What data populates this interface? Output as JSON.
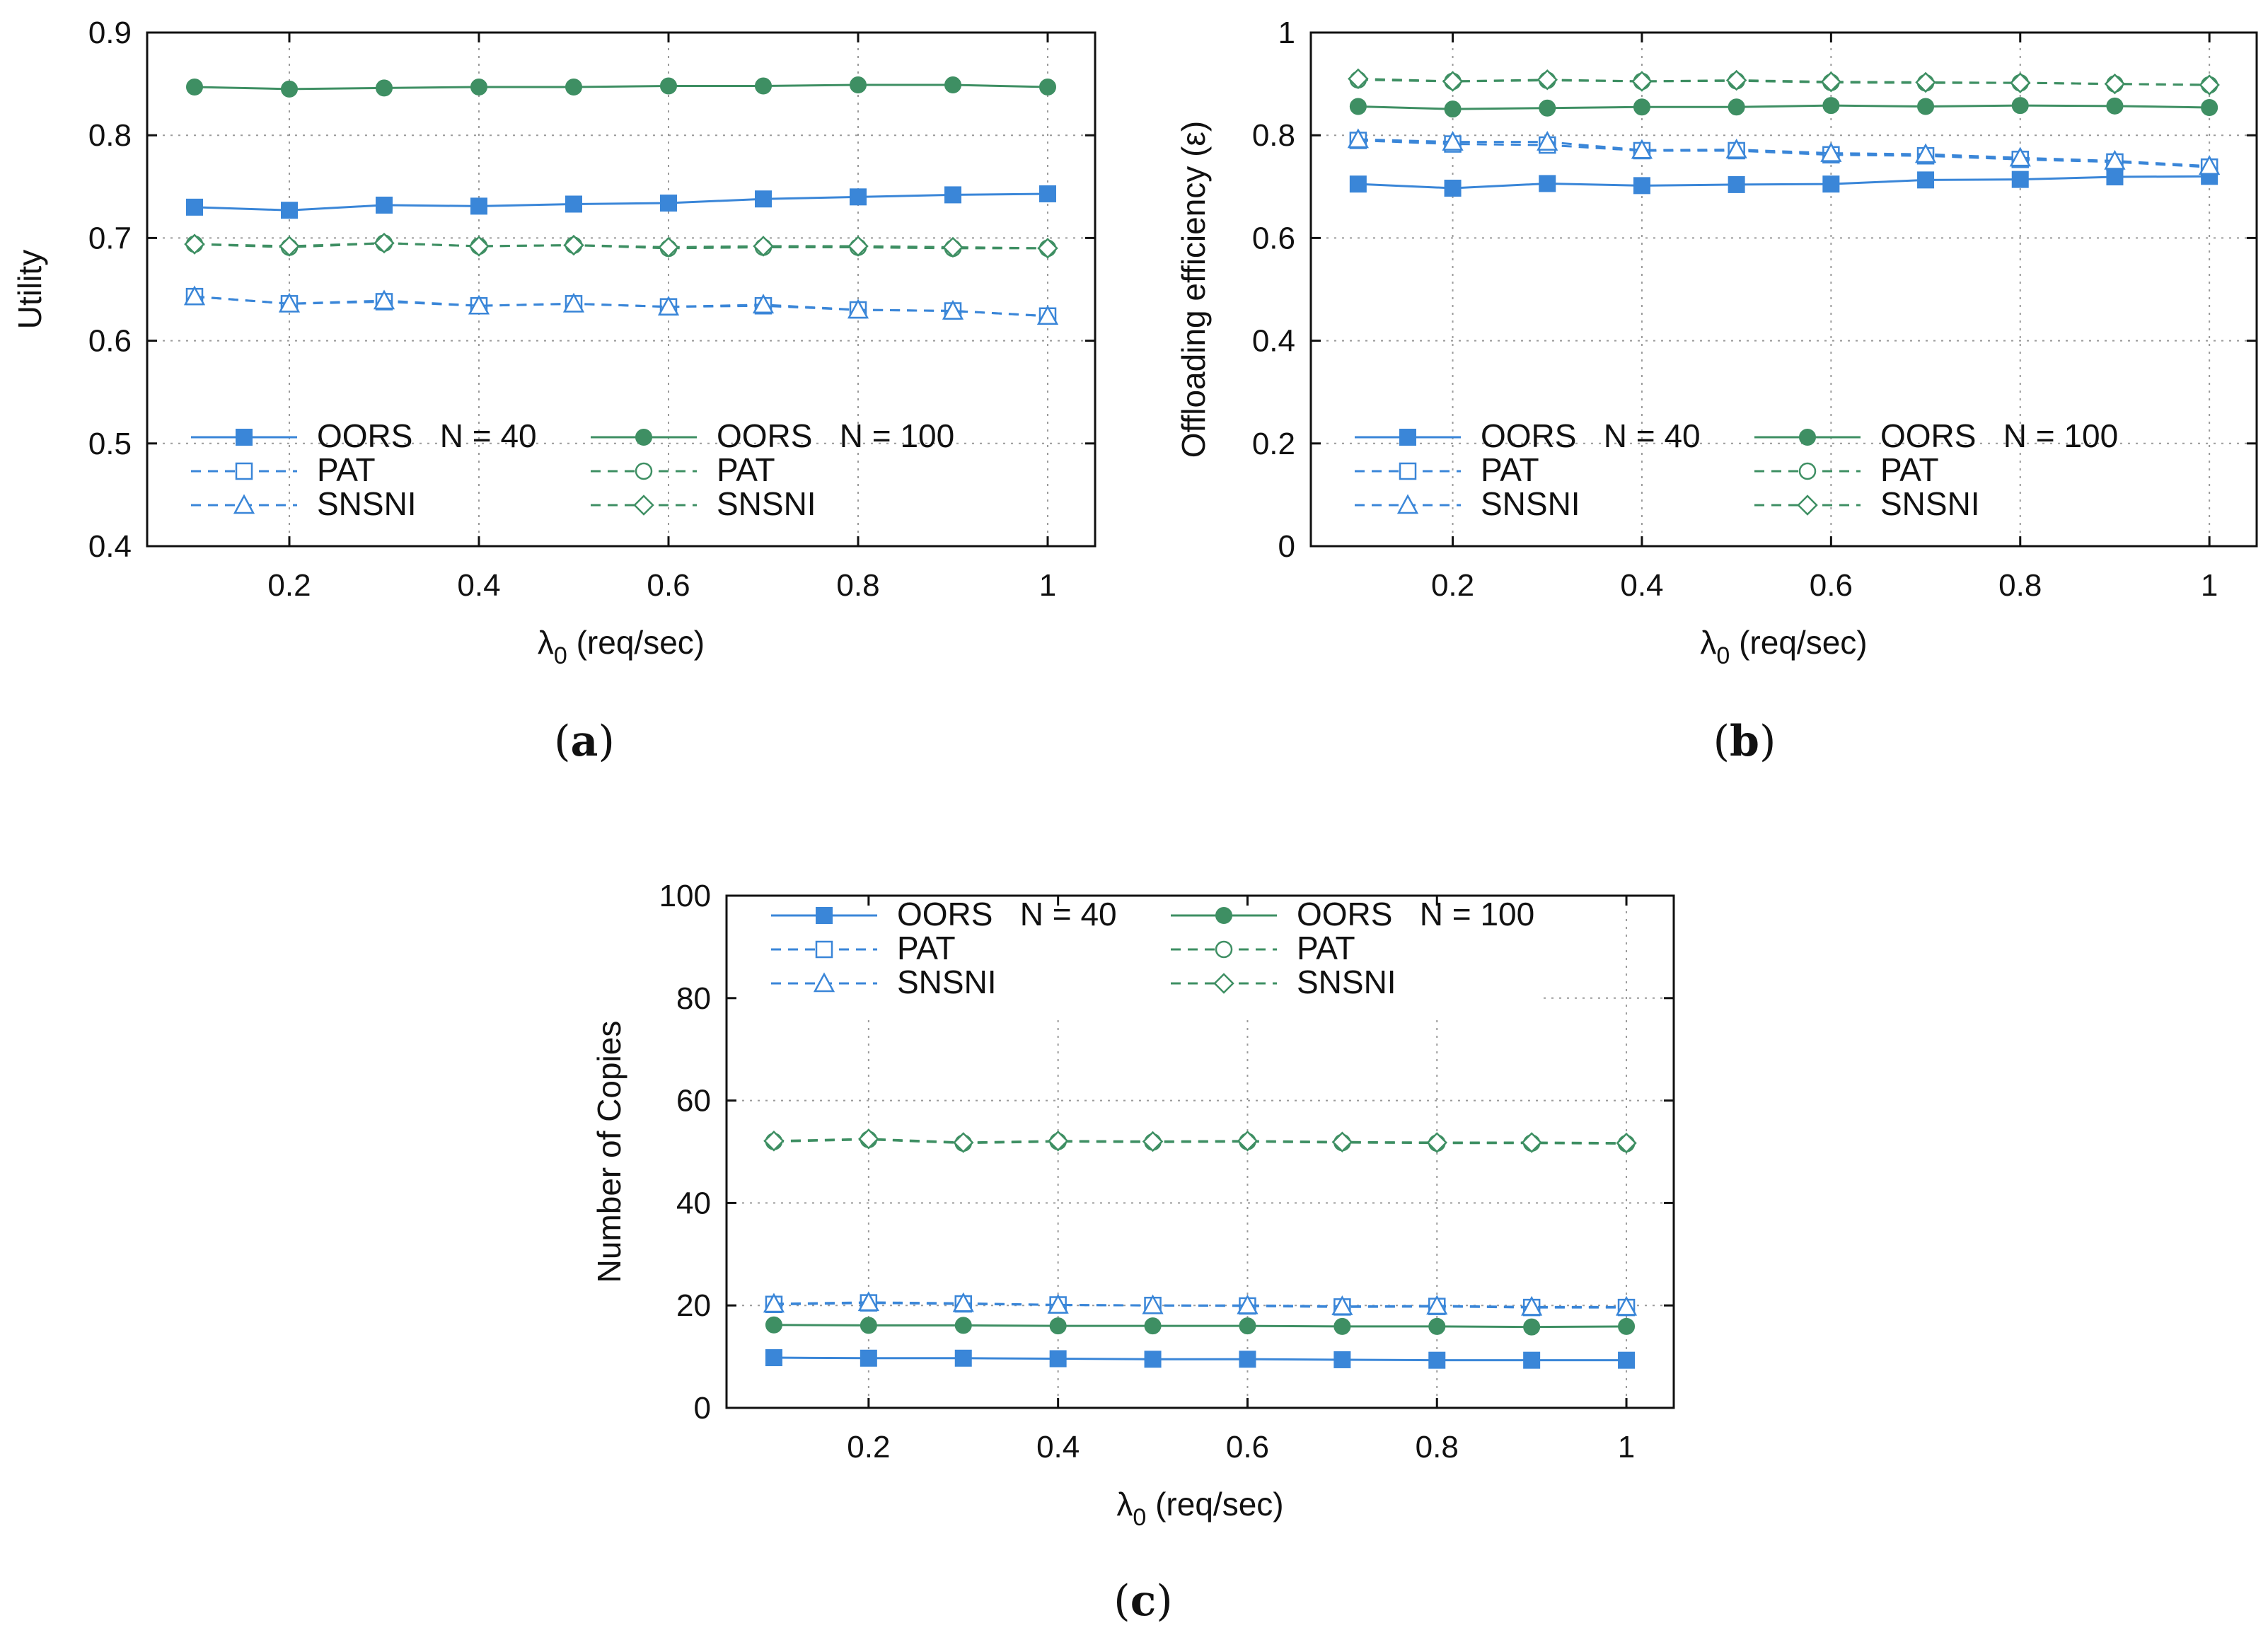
{
  "colors": {
    "blue": "#3a86d8",
    "green": "#3e8f63"
  },
  "chart_data": [
    {
      "type": "line",
      "caption": "(a)",
      "caption_letter": "a",
      "xlabel_main": "λ",
      "xlabel_sub": "0",
      "xlabel_rest": " (req/sec)",
      "ylabel": "Utility",
      "xlim": [
        0.05,
        1.05
      ],
      "ylim": [
        0.4,
        0.9
      ],
      "xticks": [
        0.2,
        0.4,
        0.6,
        0.8,
        1
      ],
      "xtick_labels": [
        "0.2",
        "0.4",
        "0.6",
        "0.8",
        "1"
      ],
      "yticks": [
        0.4,
        0.5,
        0.6,
        0.7,
        0.8,
        0.9
      ],
      "ytick_labels": [
        "0.4",
        "0.5",
        "0.6",
        "0.7",
        "0.8",
        "0.9"
      ],
      "legend_position": "bottom",
      "legend_col_titles": [
        "OORS   N = 40",
        "OORS   N = 100"
      ],
      "x": [
        0.1,
        0.2,
        0.3,
        0.4,
        0.5,
        0.6,
        0.7,
        0.8,
        0.9,
        1.0
      ],
      "series": [
        {
          "name": "OORS",
          "group": "N = 40",
          "color": "blue",
          "dash": "solid",
          "marker": "square-filled",
          "values": [
            0.73,
            0.727,
            0.732,
            0.731,
            0.733,
            0.734,
            0.738,
            0.74,
            0.742,
            0.743
          ]
        },
        {
          "name": "PAT",
          "group": "N = 40",
          "color": "blue",
          "dash": "dashed",
          "marker": "square-open",
          "values": [
            0.643,
            0.636,
            0.638,
            0.634,
            0.636,
            0.633,
            0.634,
            0.63,
            0.629,
            0.624
          ]
        },
        {
          "name": "SNSNI",
          "group": "N = 40",
          "color": "blue",
          "dash": "dashed",
          "marker": "triangle-open",
          "values": [
            0.643,
            0.636,
            0.639,
            0.634,
            0.636,
            0.633,
            0.635,
            0.63,
            0.629,
            0.624
          ]
        },
        {
          "name": "OORS",
          "group": "N = 100",
          "color": "green",
          "dash": "solid",
          "marker": "circle-filled",
          "values": [
            0.847,
            0.845,
            0.846,
            0.847,
            0.847,
            0.848,
            0.848,
            0.849,
            0.849,
            0.847
          ]
        },
        {
          "name": "PAT",
          "group": "N = 100",
          "color": "green",
          "dash": "dashed",
          "marker": "circle-open",
          "values": [
            0.694,
            0.691,
            0.695,
            0.692,
            0.693,
            0.69,
            0.691,
            0.691,
            0.69,
            0.69
          ]
        },
        {
          "name": "SNSNI",
          "group": "N = 100",
          "color": "green",
          "dash": "dashed",
          "marker": "diamond-open",
          "values": [
            0.694,
            0.692,
            0.695,
            0.692,
            0.693,
            0.691,
            0.692,
            0.692,
            0.691,
            0.69
          ]
        }
      ]
    },
    {
      "type": "line",
      "caption": "(b)",
      "caption_letter": "b",
      "xlabel_main": "λ",
      "xlabel_sub": "0",
      "xlabel_rest": " (req/sec)",
      "ylabel": "Offloading efficiency (ε)",
      "xlim": [
        0.05,
        1.05
      ],
      "ylim": [
        0,
        1
      ],
      "xticks": [
        0.2,
        0.4,
        0.6,
        0.8,
        1
      ],
      "xtick_labels": [
        "0.2",
        "0.4",
        "0.6",
        "0.8",
        "1"
      ],
      "yticks": [
        0,
        0.2,
        0.4,
        0.6,
        0.8,
        1
      ],
      "ytick_labels": [
        "0",
        "0.2",
        "0.4",
        "0.6",
        "0.8",
        "1"
      ],
      "legend_position": "bottom",
      "legend_col_titles": [
        "OORS   N = 40",
        "OORS   N = 100"
      ],
      "x": [
        0.1,
        0.2,
        0.3,
        0.4,
        0.5,
        0.6,
        0.7,
        0.8,
        0.9,
        1.0
      ],
      "series": [
        {
          "name": "OORS",
          "group": "N = 40",
          "color": "blue",
          "dash": "solid",
          "marker": "square-filled",
          "values": [
            0.705,
            0.697,
            0.706,
            0.702,
            0.704,
            0.705,
            0.713,
            0.714,
            0.719,
            0.72
          ]
        },
        {
          "name": "PAT",
          "group": "N = 40",
          "color": "blue",
          "dash": "dashed",
          "marker": "square-open",
          "values": [
            0.79,
            0.783,
            0.781,
            0.77,
            0.77,
            0.762,
            0.76,
            0.753,
            0.748,
            0.738
          ]
        },
        {
          "name": "SNSNI",
          "group": "N = 40",
          "color": "blue",
          "dash": "dashed",
          "marker": "triangle-open",
          "values": [
            0.792,
            0.787,
            0.787,
            0.771,
            0.772,
            0.765,
            0.763,
            0.756,
            0.75,
            0.74
          ]
        },
        {
          "name": "OORS",
          "group": "N = 100",
          "color": "green",
          "dash": "solid",
          "marker": "circle-filled",
          "values": [
            0.856,
            0.851,
            0.853,
            0.855,
            0.855,
            0.858,
            0.856,
            0.858,
            0.857,
            0.854
          ]
        },
        {
          "name": "PAT",
          "group": "N = 100",
          "color": "green",
          "dash": "dashed",
          "marker": "circle-open",
          "values": [
            0.908,
            0.905,
            0.907,
            0.905,
            0.906,
            0.903,
            0.902,
            0.902,
            0.9,
            0.898
          ]
        },
        {
          "name": "SNSNI",
          "group": "N = 100",
          "color": "green",
          "dash": "dashed",
          "marker": "diamond-open",
          "values": [
            0.91,
            0.905,
            0.908,
            0.905,
            0.907,
            0.904,
            0.903,
            0.902,
            0.9,
            0.898
          ]
        }
      ]
    },
    {
      "type": "line",
      "caption": "(c)",
      "caption_letter": "c",
      "xlabel_main": "λ",
      "xlabel_sub": "0",
      "xlabel_rest": " (req/sec)",
      "ylabel": "Number of Copies",
      "xlim": [
        0.05,
        1.05
      ],
      "ylim": [
        0,
        100
      ],
      "xticks": [
        0.2,
        0.4,
        0.6,
        0.8,
        1
      ],
      "xtick_labels": [
        "0.2",
        "0.4",
        "0.6",
        "0.8",
        "1"
      ],
      "yticks": [
        0,
        20,
        40,
        60,
        80,
        100
      ],
      "ytick_labels": [
        "0",
        "20",
        "40",
        "60",
        "80",
        "100"
      ],
      "legend_position": "top",
      "legend_col_titles": [
        "OORS   N = 40",
        "OORS   N = 100"
      ],
      "x": [
        0.1,
        0.2,
        0.3,
        0.4,
        0.5,
        0.6,
        0.7,
        0.8,
        0.9,
        1.0
      ],
      "series": [
        {
          "name": "OORS",
          "group": "N = 40",
          "color": "blue",
          "dash": "solid",
          "marker": "square-filled",
          "values": [
            9.8,
            9.7,
            9.7,
            9.6,
            9.5,
            9.5,
            9.4,
            9.3,
            9.3,
            9.3
          ]
        },
        {
          "name": "PAT",
          "group": "N = 40",
          "color": "blue",
          "dash": "dashed",
          "marker": "square-open",
          "values": [
            20.2,
            20.5,
            20.3,
            20.1,
            20.0,
            19.9,
            19.7,
            19.8,
            19.6,
            19.6
          ]
        },
        {
          "name": "SNSNI",
          "group": "N = 40",
          "color": "blue",
          "dash": "dashed",
          "marker": "triangle-open",
          "values": [
            20.3,
            20.6,
            20.4,
            20.1,
            20.0,
            20.0,
            19.8,
            19.9,
            19.7,
            19.7
          ]
        },
        {
          "name": "OORS",
          "group": "N = 100",
          "color": "green",
          "dash": "solid",
          "marker": "circle-filled",
          "values": [
            16.2,
            16.1,
            16.1,
            16.0,
            16.0,
            16.0,
            15.9,
            15.9,
            15.8,
            15.9
          ]
        },
        {
          "name": "PAT",
          "group": "N = 100",
          "color": "green",
          "dash": "dashed",
          "marker": "circle-open",
          "values": [
            52.0,
            52.4,
            51.7,
            52.0,
            51.9,
            52.0,
            51.8,
            51.7,
            51.7,
            51.6
          ]
        },
        {
          "name": "SNSNI",
          "group": "N = 100",
          "color": "green",
          "dash": "dashed",
          "marker": "diamond-open",
          "values": [
            52.1,
            52.5,
            51.8,
            52.1,
            52.0,
            52.1,
            51.9,
            51.8,
            51.8,
            51.7
          ]
        }
      ]
    }
  ]
}
